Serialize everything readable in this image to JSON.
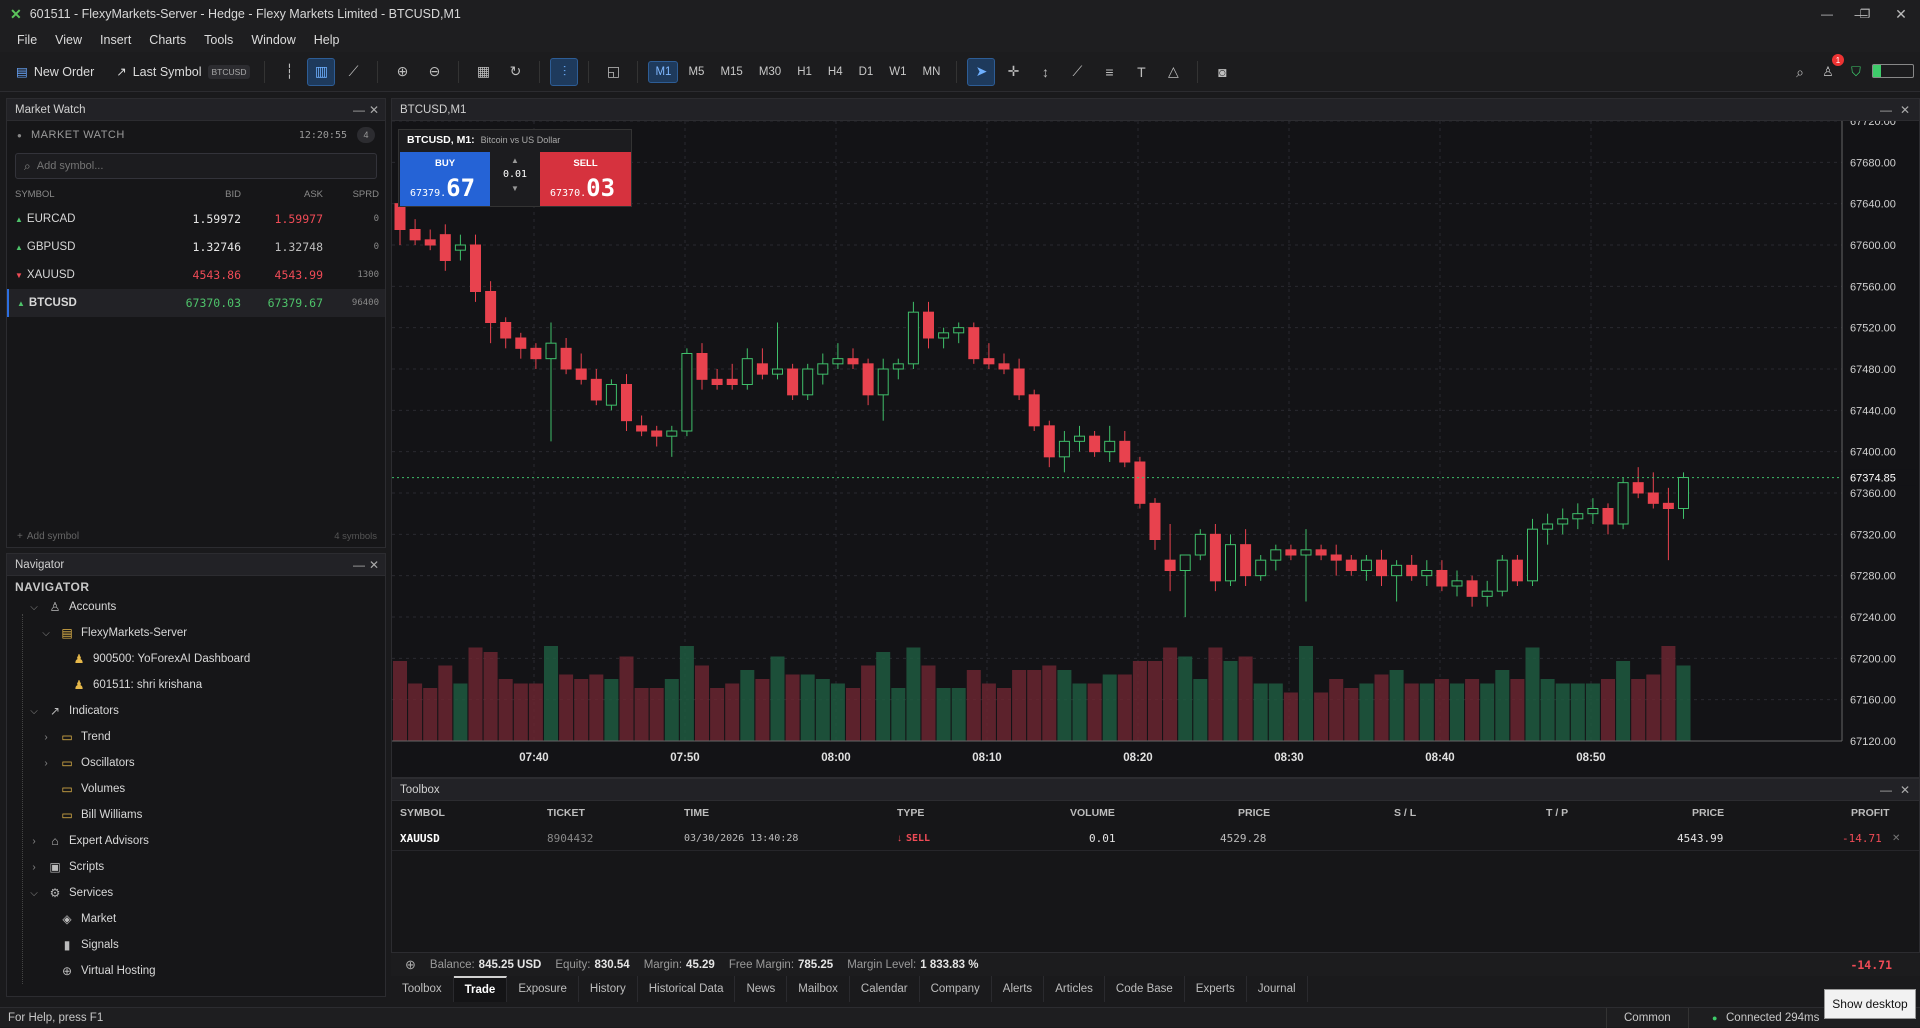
{
  "window": {
    "title": "601511 - FlexyMarkets-Server - Hedge - Flexy Markets Limited - BTCUSD,M1",
    "minimize_icon": "minimize-icon",
    "maximize_icon": "restore-icon",
    "close_icon": "close-icon"
  },
  "menu": [
    "File",
    "View",
    "Insert",
    "Charts",
    "Tools",
    "Window",
    "Help"
  ],
  "toolbar": {
    "new_order": "New Order",
    "last_symbol": "Last Symbol",
    "last_symbol_badge": "BTCUSD",
    "timeframes": [
      "M1",
      "M5",
      "M15",
      "M30",
      "H1",
      "H4",
      "D1",
      "W1",
      "MN"
    ],
    "active_timeframe": "M1",
    "notification_count": "1"
  },
  "market_watch": {
    "panel_title": "Market Watch",
    "header": "MARKET WATCH",
    "time": "12:20:55",
    "count_badge": "4",
    "search_placeholder": "Add symbol...",
    "columns": [
      "SYMBOL",
      "BID",
      "ASK",
      "SPRD"
    ],
    "rows": [
      {
        "symbol": "EURCAD",
        "dir": "up",
        "bid": "1.59972",
        "ask": "1.59977",
        "spread": "0"
      },
      {
        "symbol": "GBPUSD",
        "dir": "up",
        "bid": "1.32746",
        "ask": "1.32748",
        "spread": "0"
      },
      {
        "symbol": "XAUUSD",
        "dir": "down",
        "bid": "4543.86",
        "ask": "4543.99",
        "spread": "1300"
      },
      {
        "symbol": "BTCUSD",
        "dir": "up",
        "bid": "67370.03",
        "ask": "67379.67",
        "spread": "96400"
      }
    ],
    "add_symbol": "Add symbol",
    "symbol_count": "4 symbols"
  },
  "navigator": {
    "panel_title": "Navigator",
    "header": "NAVIGATOR",
    "items": [
      {
        "label": "Accounts",
        "icon": "user-icon"
      },
      {
        "label": "FlexyMarkets-Server",
        "icon": "server-icon"
      },
      {
        "label": "900500: YoForexAI Dashboard",
        "icon": "user-icon"
      },
      {
        "label": "601511: shri krishana",
        "icon": "user-icon"
      },
      {
        "label": "Indicators",
        "icon": "indicator-icon"
      },
      {
        "label": "Trend",
        "icon": "folder-icon"
      },
      {
        "label": "Oscillators",
        "icon": "folder-icon"
      },
      {
        "label": "Volumes",
        "icon": "folder-icon"
      },
      {
        "label": "Bill Williams",
        "icon": "folder-icon"
      },
      {
        "label": "Expert Advisors",
        "icon": "robot-icon"
      },
      {
        "label": "Scripts",
        "icon": "script-icon"
      },
      {
        "label": "Services",
        "icon": "gear-icon"
      },
      {
        "label": "Market",
        "icon": "cube-icon"
      },
      {
        "label": "Signals",
        "icon": "signal-icon"
      },
      {
        "label": "Virtual Hosting",
        "icon": "globe-icon"
      }
    ]
  },
  "chart": {
    "tab_title": "BTCUSD,M1",
    "symbol_label": "BTCUSD, M1:",
    "symbol_desc": "Bitcoin vs US Dollar",
    "buy_label": "BUY",
    "buy_price_small": "67379.",
    "buy_price_big": "67",
    "sell_label": "SELL",
    "sell_price_small": "67370.",
    "sell_price_big": "03",
    "lot": "0.01",
    "current_price_label": "67374.85",
    "price_ticks": [
      "67720.00",
      "67680.00",
      "67640.00",
      "67600.00",
      "67560.00",
      "67520.00",
      "67480.00",
      "67440.00",
      "67400.00",
      "67360.00",
      "67320.00",
      "67280.00",
      "67240.00",
      "67200.00",
      "67160.00",
      "67120.00"
    ],
    "time_ticks": [
      "07:40",
      "07:50",
      "08:00",
      "08:10",
      "08:20",
      "08:30",
      "08:40",
      "08:50"
    ]
  },
  "chart_data": {
    "type": "candlestick",
    "title": "BTCUSD, M1",
    "ylim": [
      67120,
      67720
    ],
    "current_price": 67374.85,
    "time_ticks": [
      "07:40",
      "07:50",
      "08:00",
      "08:10",
      "08:20",
      "08:30",
      "08:40",
      "08:50"
    ],
    "candles": [
      [
        67640,
        67650,
        67600,
        67615
      ],
      [
        67615,
        67625,
        67600,
        67605
      ],
      [
        67605,
        67615,
        67595,
        67600
      ],
      [
        67610,
        67620,
        67575,
        67585
      ],
      [
        67595,
        67610,
        67585,
        67600
      ],
      [
        67600,
        67610,
        67545,
        67555
      ],
      [
        67555,
        67565,
        67505,
        67525
      ],
      [
        67525,
        67530,
        67500,
        67510
      ],
      [
        67510,
        67515,
        67490,
        67500
      ],
      [
        67500,
        67505,
        67480,
        67490
      ],
      [
        67490,
        67525,
        67410,
        67505
      ],
      [
        67500,
        67510,
        67475,
        67480
      ],
      [
        67480,
        67495,
        67465,
        67470
      ],
      [
        67470,
        67480,
        67445,
        67450
      ],
      [
        67445,
        67470,
        67440,
        67465
      ],
      [
        67465,
        67475,
        67420,
        67430
      ],
      [
        67425,
        67435,
        67415,
        67420
      ],
      [
        67420,
        67425,
        67405,
        67415
      ],
      [
        67415,
        67425,
        67395,
        67420
      ],
      [
        67420,
        67500,
        67415,
        67495
      ],
      [
        67495,
        67505,
        67460,
        67470
      ],
      [
        67470,
        67480,
        67460,
        67465
      ],
      [
        67470,
        67485,
        67460,
        67465
      ],
      [
        67465,
        67500,
        67460,
        67490
      ],
      [
        67485,
        67500,
        67470,
        67475
      ],
      [
        67475,
        67525,
        67470,
        67480
      ],
      [
        67480,
        67485,
        67450,
        67455
      ],
      [
        67455,
        67485,
        67450,
        67480
      ],
      [
        67475,
        67495,
        67465,
        67485
      ],
      [
        67485,
        67505,
        67480,
        67490
      ],
      [
        67490,
        67500,
        67480,
        67485
      ],
      [
        67485,
        67490,
        67445,
        67455
      ],
      [
        67455,
        67490,
        67430,
        67480
      ],
      [
        67480,
        67490,
        67470,
        67485
      ],
      [
        67485,
        67545,
        67480,
        67535
      ],
      [
        67535,
        67545,
        67500,
        67510
      ],
      [
        67510,
        67520,
        67500,
        67515
      ],
      [
        67515,
        67525,
        67505,
        67520
      ],
      [
        67520,
        67525,
        67485,
        67490
      ],
      [
        67490,
        67505,
        67480,
        67485
      ],
      [
        67485,
        67495,
        67475,
        67480
      ],
      [
        67480,
        67490,
        67450,
        67455
      ],
      [
        67455,
        67460,
        67420,
        67425
      ],
      [
        67425,
        67430,
        67385,
        67395
      ],
      [
        67395,
        67420,
        67380,
        67410
      ],
      [
        67410,
        67425,
        67400,
        67415
      ],
      [
        67415,
        67420,
        67395,
        67400
      ],
      [
        67400,
        67425,
        67390,
        67410
      ],
      [
        67410,
        67420,
        67385,
        67390
      ],
      [
        67390,
        67395,
        67345,
        67350
      ],
      [
        67350,
        67355,
        67305,
        67315
      ],
      [
        67295,
        67330,
        67265,
        67285
      ],
      [
        67285,
        67295,
        67240,
        67300
      ],
      [
        67300,
        67325,
        67295,
        67320
      ],
      [
        67320,
        67330,
        67265,
        67275
      ],
      [
        67275,
        67320,
        67270,
        67310
      ],
      [
        67310,
        67325,
        67270,
        67280
      ],
      [
        67280,
        67300,
        67275,
        67295
      ],
      [
        67295,
        67310,
        67285,
        67305
      ],
      [
        67305,
        67310,
        67295,
        67300
      ],
      [
        67300,
        67325,
        67255,
        67305
      ],
      [
        67305,
        67310,
        67295,
        67300
      ],
      [
        67300,
        67310,
        67280,
        67295
      ],
      [
        67295,
        67300,
        67280,
        67285
      ],
      [
        67285,
        67300,
        67275,
        67295
      ],
      [
        67295,
        67305,
        67270,
        67280
      ],
      [
        67280,
        67295,
        67255,
        67290
      ],
      [
        67290,
        67300,
        67275,
        67280
      ],
      [
        67280,
        67295,
        67270,
        67285
      ],
      [
        67285,
        67295,
        67265,
        67270
      ],
      [
        67270,
        67285,
        67260,
        67275
      ],
      [
        67275,
        67280,
        67250,
        67260
      ],
      [
        67260,
        67275,
        67250,
        67265
      ],
      [
        67265,
        67300,
        67260,
        67295
      ],
      [
        67295,
        67300,
        67270,
        67275
      ],
      [
        67275,
        67335,
        67270,
        67325
      ],
      [
        67325,
        67340,
        67310,
        67330
      ],
      [
        67330,
        67345,
        67320,
        67335
      ],
      [
        67335,
        67350,
        67325,
        67340
      ],
      [
        67340,
        67355,
        67330,
        67345
      ],
      [
        67345,
        67350,
        67320,
        67330
      ],
      [
        67330,
        67375,
        67325,
        67370
      ],
      [
        67370,
        67385,
        67355,
        67360
      ],
      [
        67360,
        67380,
        67345,
        67350
      ],
      [
        67350,
        67365,
        67295,
        67345
      ],
      [
        67345,
        67380,
        67335,
        67375
      ]
    ],
    "volume_colors": "volume bars follow candle direction"
  },
  "toolbox": {
    "panel_title": "Toolbox",
    "columns": [
      "SYMBOL",
      "TICKET",
      "TIME",
      "TYPE",
      "VOLUME",
      "PRICE",
      "S / L",
      "T / P",
      "PRICE",
      "PROFIT"
    ],
    "rows": [
      {
        "symbol": "XAUUSD",
        "ticket": "8904432",
        "time": "03/30/2026 13:40:28",
        "type": "SELL",
        "volume": "0.01",
        "price": "4529.28",
        "sl": "",
        "tp": "",
        "current": "4543.99",
        "profit": "-14.71"
      }
    ]
  },
  "balance_bar": {
    "balance_label": "Balance:",
    "balance": "845.25 USD",
    "equity_label": "Equity:",
    "equity": "830.54",
    "margin_label": "Margin:",
    "margin": "45.29",
    "free_margin_label": "Free Margin:",
    "free_margin": "785.25",
    "margin_level_label": "Margin Level:",
    "margin_level": "1 833.83 %",
    "total_profit": "-14.71"
  },
  "tabs": [
    "Toolbox",
    "Trade",
    "Exposure",
    "History",
    "Historical Data",
    "News",
    "Mailbox",
    "Calendar",
    "Company",
    "Alerts",
    "Articles",
    "Code Base",
    "Experts",
    "Journal"
  ],
  "active_tab": "Trade",
  "status": {
    "help": "For Help, press F1",
    "profile": "Common",
    "connection": "Connected 294ms",
    "show_desktop": "Show desktop"
  },
  "colors": {
    "up": "#4ec26a",
    "down": "#ef4b56",
    "accent": "#2d6fe0",
    "background": "#131316"
  }
}
